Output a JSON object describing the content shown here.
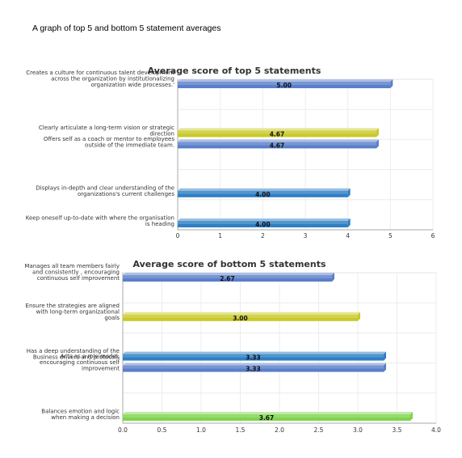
{
  "page_heading": "A graph of top 5 and bottom 5 statement averages",
  "chart_data": [
    {
      "type": "bar",
      "orientation": "horizontal",
      "title": "Average score of top 5 statements",
      "categories": [
        [
          "Creates a culture for continuous talent development",
          "across the organization by institutionalizing",
          "organization wide processes.'"
        ],
        [
          "Clearly articulate a long-term vision or strategic",
          "direction"
        ],
        [
          "Offers self as a coach or mentor to employees",
          "outside of the immediate team."
        ],
        [
          "Displays in-depth and clear understanding of the",
          "organizations's current challenges"
        ],
        [
          "Keep oneself up-to-date with where the organisation",
          "is heading"
        ]
      ],
      "values": [
        5.0,
        4.67,
        4.67,
        4.0,
        4.0
      ],
      "value_labels": [
        "5.00",
        "4.67",
        "4.67",
        "4.00",
        "4.00"
      ],
      "bar_colors": [
        "#5b7fc9",
        "#c9c92a",
        "#5b7fc9",
        "#2f7fc4",
        "#2f7fc4"
      ],
      "bar_position": [
        "top",
        "bottom",
        "top",
        "bottom",
        "bottom"
      ],
      "xlim": [
        0,
        6
      ],
      "ticks": [
        "0",
        "1",
        "2",
        "3",
        "4",
        "5",
        "6"
      ],
      "grid": true
    },
    {
      "type": "bar",
      "orientation": "horizontal",
      "title": "Average score of bottom 5 statements",
      "categories": [
        [
          "Manages all team members fairly",
          "and consistently , encouraging",
          "continuous self improvement"
        ],
        [
          "Ensure the strategies are aligned",
          "with long-term organizational",
          "goals"
        ],
        [
          "Has a deep understanding of the",
          "Business drivers and protocols"
        ],
        [
          "Acts as a role model,",
          "encouraging continuous self",
          "improvement"
        ],
        [
          "Balances emotion and logic",
          "when making a decision"
        ]
      ],
      "values": [
        2.67,
        3.0,
        3.33,
        3.33,
        3.67
      ],
      "value_labels": [
        "2.67",
        "3.00",
        "3.33",
        "3.33",
        "3.67"
      ],
      "bar_colors": [
        "#5b7fc9",
        "#c9c92a",
        "#2f7fc4",
        "#5b7fc9",
        "#7fd44f"
      ],
      "bar_position": [
        "top",
        "middle",
        "bottom",
        "top",
        "bottom"
      ],
      "xlim": [
        0,
        4
      ],
      "ticks": [
        "0.0",
        "0.5",
        "1.0",
        "1.5",
        "2.0",
        "2.5",
        "3.0",
        "3.5",
        "4.0"
      ],
      "grid": true
    }
  ]
}
